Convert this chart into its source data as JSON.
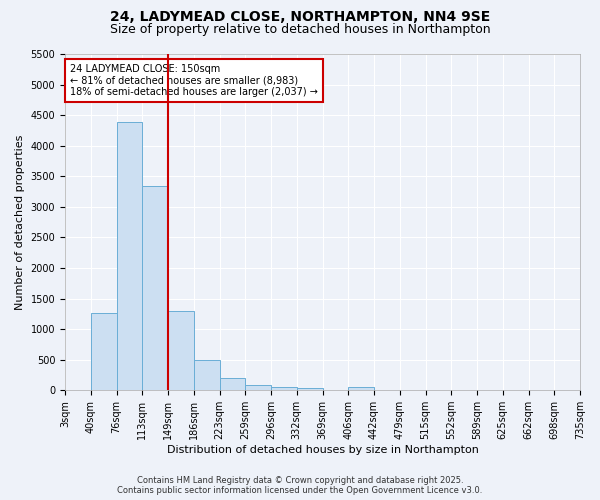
{
  "title1": "24, LADYMEAD CLOSE, NORTHAMPTON, NN4 9SE",
  "title2": "Size of property relative to detached houses in Northampton",
  "xlabel": "Distribution of detached houses by size in Northampton",
  "ylabel": "Number of detached properties",
  "bin_labels": [
    "3sqm",
    "40sqm",
    "76sqm",
    "113sqm",
    "149sqm",
    "186sqm",
    "223sqm",
    "259sqm",
    "296sqm",
    "332sqm",
    "369sqm",
    "406sqm",
    "442sqm",
    "479sqm",
    "515sqm",
    "552sqm",
    "589sqm",
    "625sqm",
    "662sqm",
    "698sqm",
    "735sqm"
  ],
  "bar_values": [
    0,
    1270,
    4380,
    3340,
    1290,
    500,
    200,
    90,
    60,
    30,
    0,
    50,
    0,
    0,
    0,
    0,
    0,
    0,
    0,
    0
  ],
  "bar_color": "#ccdff2",
  "bar_edge_color": "#6aaed6",
  "vline_color": "#cc0000",
  "ylim_max": 5500,
  "yticks": [
    0,
    500,
    1000,
    1500,
    2000,
    2500,
    3000,
    3500,
    4000,
    4500,
    5000,
    5500
  ],
  "annotation_title": "24 LADYMEAD CLOSE: 150sqm",
  "annotation_line1": "← 81% of detached houses are smaller (8,983)",
  "annotation_line2": "18% of semi-detached houses are larger (2,037) →",
  "annotation_box_facecolor": "#ffffff",
  "annotation_box_edgecolor": "#cc0000",
  "footer1": "Contains HM Land Registry data © Crown copyright and database right 2025.",
  "footer2": "Contains public sector information licensed under the Open Government Licence v3.0.",
  "bg_color": "#eef2f9",
  "plot_bg_color": "#eef2f9",
  "grid_color": "#ffffff",
  "title1_fontsize": 10,
  "title2_fontsize": 9,
  "axis_label_fontsize": 8,
  "tick_fontsize": 7,
  "footer_fontsize": 6,
  "annot_fontsize": 7
}
